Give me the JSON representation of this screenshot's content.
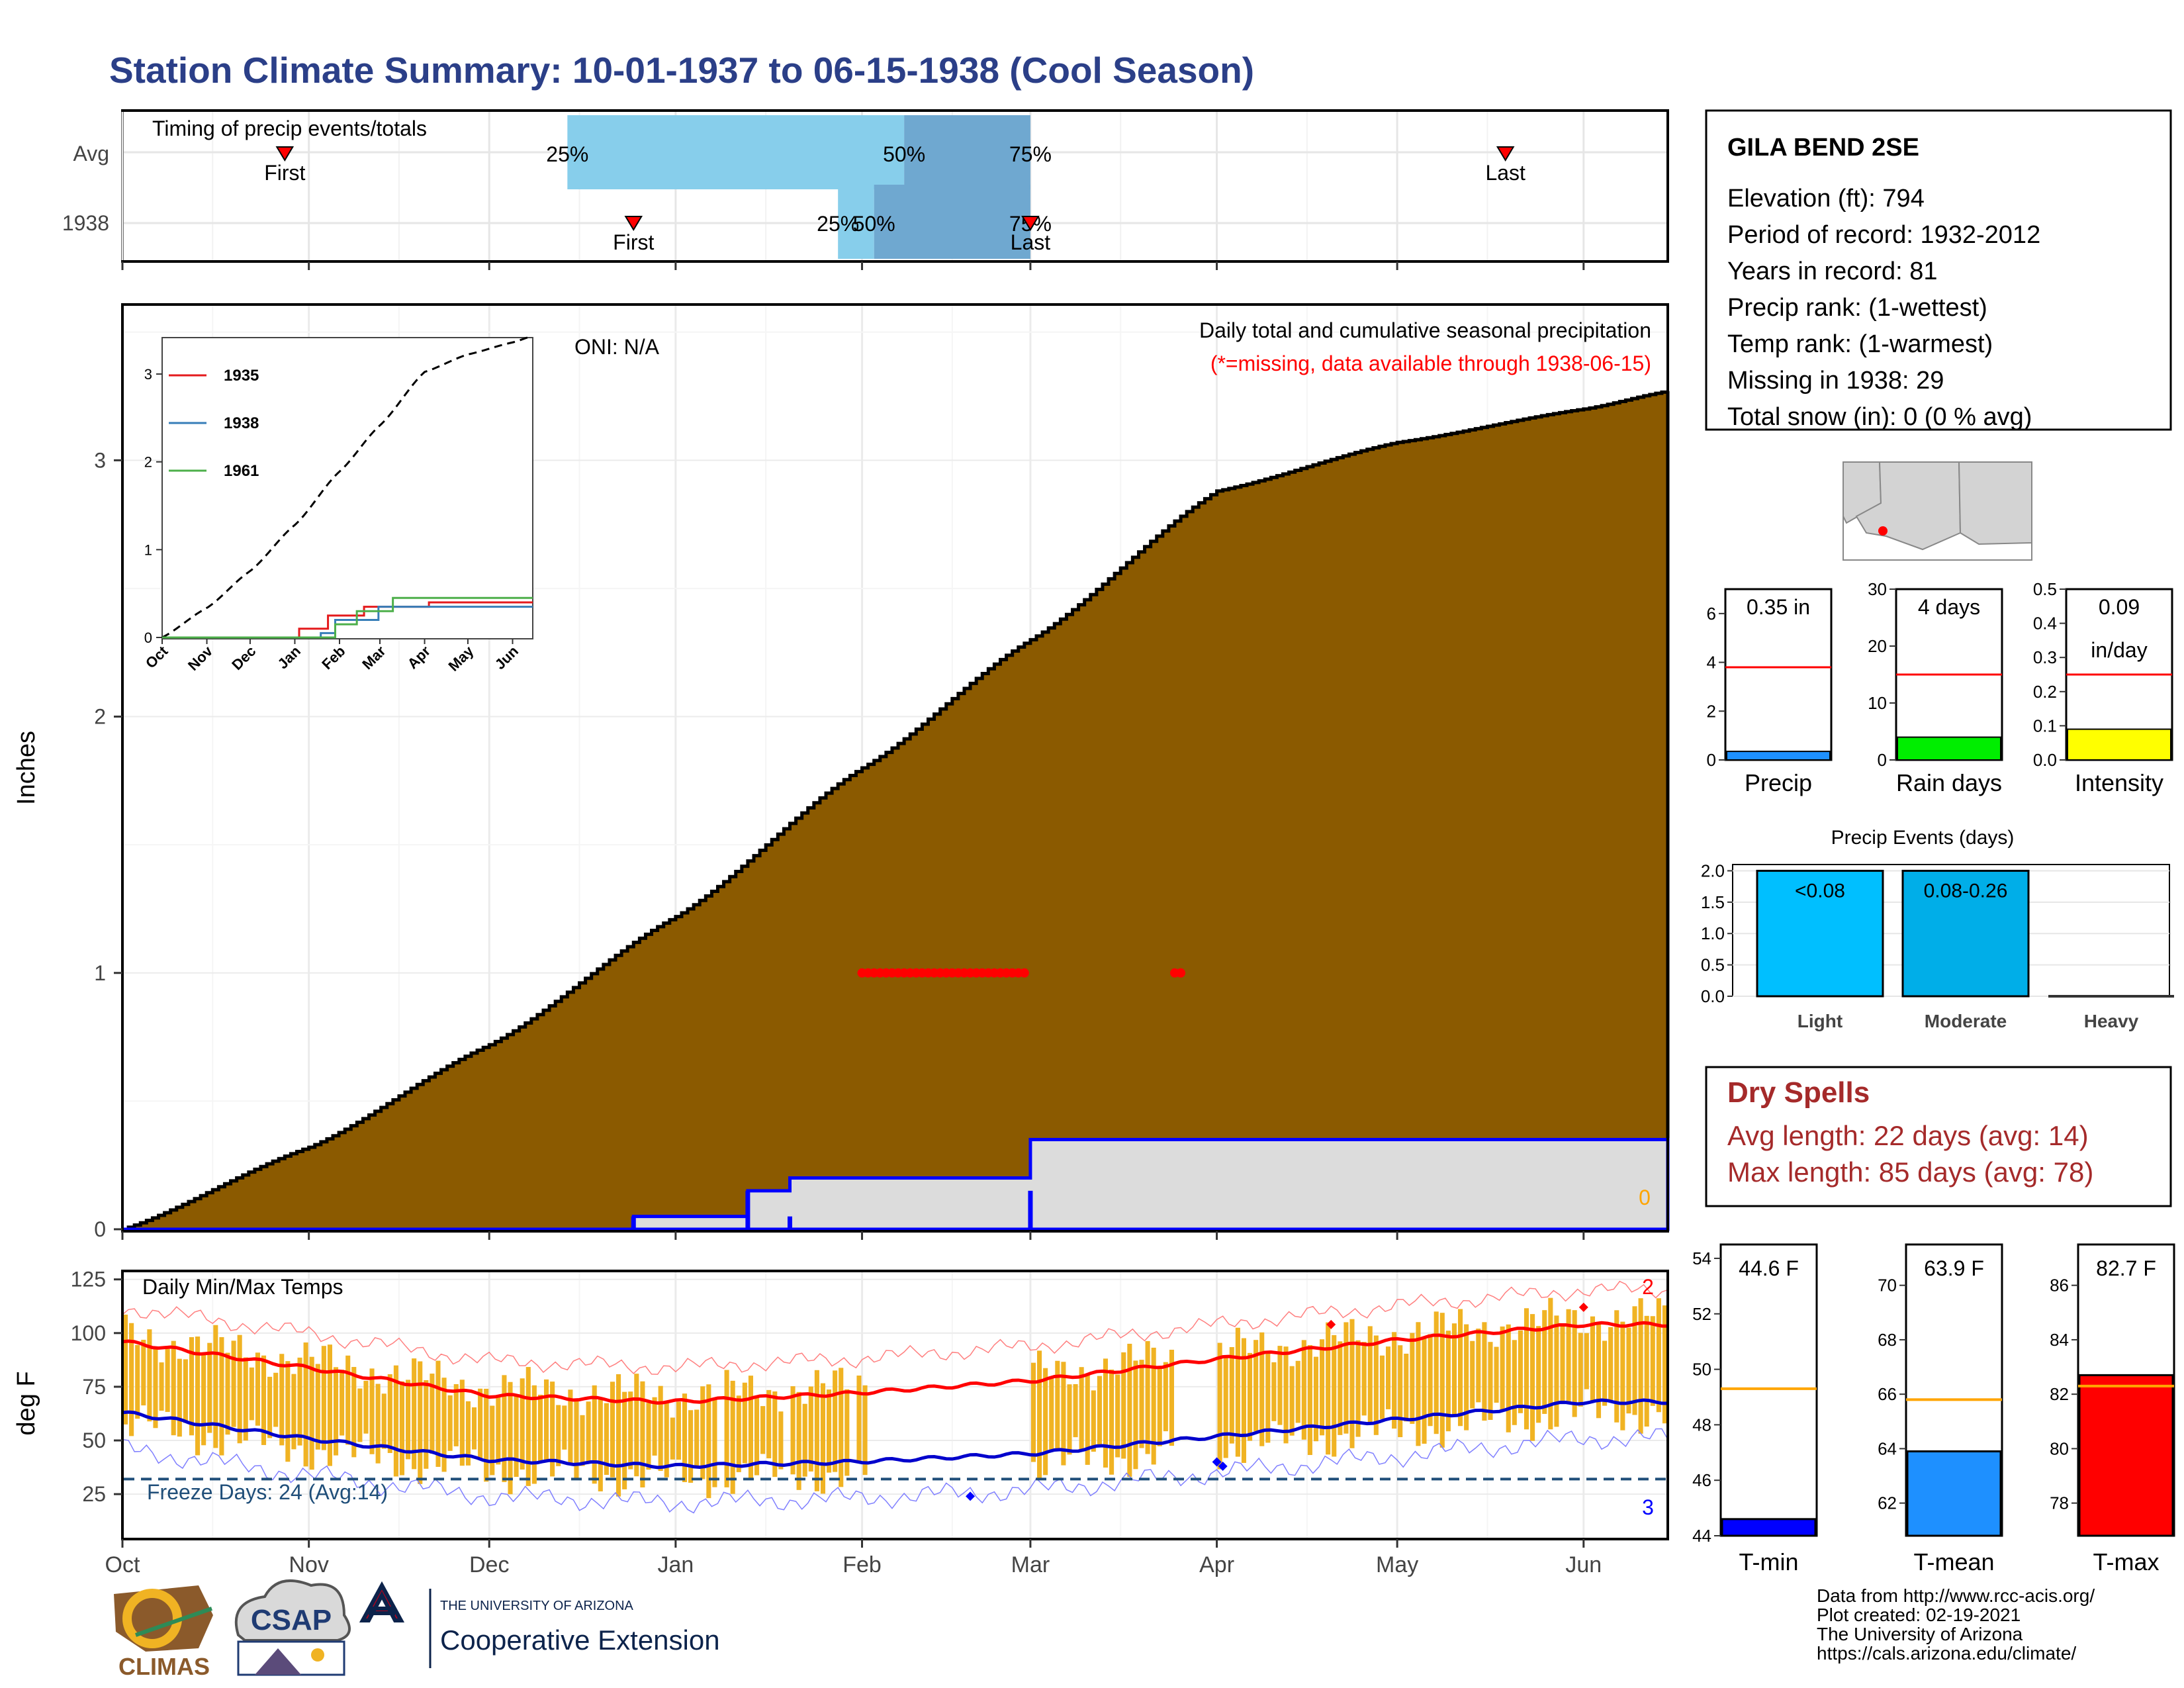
{
  "title": "Station Climate Summary: 10-01-1937 to 06-15-1938 (Cool Season)",
  "colors": {
    "title": "#2b3f88",
    "precip_fill": "#8b5a00",
    "missing": "#ff0000",
    "blue_line": "#0000ff",
    "temp_bar": "#f0b323",
    "tmax_line": "#ff0000",
    "tmin_line": "#0000cc",
    "freeze_line": "#1f4e79",
    "dry_spells": "#a52a2a",
    "light_blue": "#87ceeb",
    "mid_blue": "#6fa8d0"
  },
  "timing": {
    "title": "Timing of precip events/totals",
    "rows": [
      "Avg",
      "1938"
    ],
    "first_label": "First",
    "last_label": "Last",
    "pct_labels": [
      "25%",
      "50%",
      "75%"
    ],
    "avg": {
      "first": "1937-10-28",
      "p25": "1937-12-14",
      "p50": "1938-02-08",
      "p75": "1938-03-01",
      "last": "1938-05-19"
    },
    "y1938": {
      "first": "1937-12-25",
      "p25": "1938-01-28",
      "p50": "1938-02-03",
      "p75": "1938-03-01",
      "last": "1938-03-01"
    }
  },
  "station": {
    "name": "GILA BEND 2SE",
    "lines": [
      "Elevation (ft): 794",
      "Period of record: 1932-2012",
      "Years in record: 81",
      "Precip rank:  (1-wettest)",
      "Temp rank:  (1-warmest)",
      "Missing in 1938: 29",
      "Total snow (in): 0 (0 % avg)"
    ]
  },
  "precip_panel": {
    "ylabel": "Inches",
    "header": "Daily total and cumulative seasonal precipitation",
    "missing_note": "(*=missing, data available through 1938-06-15)",
    "oni": "ONI: N/A",
    "snow_label": "0",
    "yticks": [
      "0",
      "1",
      "2",
      "3"
    ],
    "ylim": [
      0,
      3.6
    ]
  },
  "inset": {
    "legend": [
      "1935",
      "1938",
      "1961"
    ],
    "months": [
      "Oct",
      "Nov",
      "Dec",
      "Jan",
      "Feb",
      "Mar",
      "Apr",
      "May",
      "Jun"
    ],
    "yticks": [
      "0",
      "1",
      "2",
      "3"
    ]
  },
  "small_bars": [
    {
      "label": "Precip",
      "value_text": "0.35 in",
      "value": 0.35,
      "avg": 3.8,
      "ymax": 7,
      "ticks": [
        "0",
        "2",
        "4",
        "6"
      ],
      "tick_vals": [
        0,
        2,
        4,
        6
      ],
      "color": "#1e90ff"
    },
    {
      "label": "Rain days",
      "value_text": "4 days",
      "value": 4,
      "avg": 15,
      "ymax": 30,
      "ticks": [
        "0",
        "10",
        "20",
        "30"
      ],
      "tick_vals": [
        0,
        10,
        20,
        30
      ],
      "color": "#00ee00"
    },
    {
      "label": "Intensity",
      "value_text": "0.09",
      "value_text2": "in/day",
      "value": 0.09,
      "avg": 0.25,
      "ymax": 0.5,
      "ticks": [
        "0.0",
        "0.1",
        "0.2",
        "0.3",
        "0.4",
        "0.5"
      ],
      "tick_vals": [
        0,
        0.1,
        0.2,
        0.3,
        0.4,
        0.5
      ],
      "color": "#ffff00"
    }
  ],
  "events": {
    "title": "Precip Events (days)",
    "categories": [
      "Light",
      "Moderate",
      "Heavy"
    ],
    "bar_labels": [
      "<0.08",
      "0.08-0.26",
      ""
    ],
    "values": [
      2,
      2,
      0
    ],
    "yticks": [
      "0.0",
      "0.5",
      "1.0",
      "1.5",
      "2.0"
    ]
  },
  "dry_spells": {
    "title": "Dry Spells",
    "avg": "Avg length: 22 days (avg: 14)",
    "max": "Max length: 85 days (avg: 78)"
  },
  "temp_panel": {
    "title": "Daily Min/Max Temps",
    "ylabel": "deg F",
    "freeze": "Freeze Days: 24 (Avg:14)",
    "hot_count": "2",
    "cold_count": "3",
    "yticks": [
      "25",
      "50",
      "75",
      "100",
      "125"
    ],
    "months": [
      "Oct",
      "Nov",
      "Dec",
      "Jan",
      "Feb",
      "Mar",
      "Apr",
      "May",
      "Jun"
    ]
  },
  "temp_bars": [
    {
      "label": "T-min",
      "value_text": "44.6 F",
      "value": 44.6,
      "avg": 49.3,
      "ymin": 44,
      "ymax": 54.5,
      "ticks": [
        "44",
        "46",
        "48",
        "50",
        "52",
        "54"
      ],
      "tick_vals": [
        44,
        46,
        48,
        50,
        52,
        54
      ],
      "color": "#0000ff"
    },
    {
      "label": "T-mean",
      "value_text": "63.9 F",
      "value": 63.9,
      "avg": 65.8,
      "ymin": 60.8,
      "ymax": 71.5,
      "ticks": [
        "62",
        "64",
        "66",
        "68",
        "70"
      ],
      "tick_vals": [
        62,
        64,
        66,
        68,
        70
      ],
      "color": "#1e90ff"
    },
    {
      "label": "T-max",
      "value_text": "82.7 F",
      "value": 82.7,
      "avg": 82.3,
      "ymin": 76.8,
      "ymax": 87.5,
      "ticks": [
        "78",
        "80",
        "82",
        "84",
        "86"
      ],
      "tick_vals": [
        78,
        80,
        82,
        84,
        86
      ],
      "color": "#ff0000"
    }
  ],
  "footer": {
    "lines": [
      "Data from http://www.rcc-acis.org/",
      "Plot created: 02-19-2021",
      "The University of Arizona",
      "https://cals.arizona.edu/climate/"
    ],
    "climas": "CLIMAS",
    "csap": "CSAP",
    "ua_small": "THE UNIVERSITY OF ARIZONA",
    "ua_big": "Cooperative Extension"
  },
  "chart_data": [
    {
      "type": "area",
      "title": "Daily total and cumulative seasonal precipitation",
      "ylabel": "Inches",
      "ylim": [
        0,
        3.6
      ],
      "series": [
        {
          "name": "Average cumulative",
          "x": [
            "1937-10-01",
            "1937-11-01",
            "1937-12-01",
            "1938-01-01",
            "1938-02-01",
            "1938-03-01",
            "1938-04-01",
            "1938-05-01",
            "1938-06-01",
            "1938-06-15"
          ],
          "values": [
            0,
            0.32,
            0.72,
            1.22,
            1.8,
            2.3,
            2.88,
            3.07,
            3.2,
            3.27
          ]
        },
        {
          "name": "1938 cumulative",
          "x": [
            "1937-10-01",
            "1937-12-25",
            "1938-01-13",
            "1938-01-20",
            "1938-02-28",
            "1938-03-01",
            "1938-06-15"
          ],
          "values": [
            0,
            0.05,
            0.15,
            0.2,
            0.2,
            0.35,
            0.35
          ]
        }
      ],
      "missing_days_y": 1.0
    },
    {
      "type": "line",
      "title": "Daily Min/Max Temps",
      "ylabel": "deg F",
      "ylim": [
        5,
        125
      ],
      "series": [
        {
          "name": "Avg max",
          "x": [
            "Oct",
            "Nov",
            "Dec",
            "Jan",
            "Feb",
            "Mar",
            "Apr",
            "May",
            "Jun"
          ],
          "values": [
            96,
            84,
            71,
            68,
            72,
            78,
            88,
            97,
            104
          ]
        },
        {
          "name": "Avg min",
          "x": [
            "Oct",
            "Nov",
            "Dec",
            "Jan",
            "Feb",
            "Mar",
            "Apr",
            "May",
            "Jun"
          ],
          "values": [
            63,
            51,
            41,
            38,
            40,
            44,
            52,
            60,
            68
          ]
        },
        {
          "name": "Freeze",
          "values": [
            32
          ]
        }
      ]
    }
  ]
}
